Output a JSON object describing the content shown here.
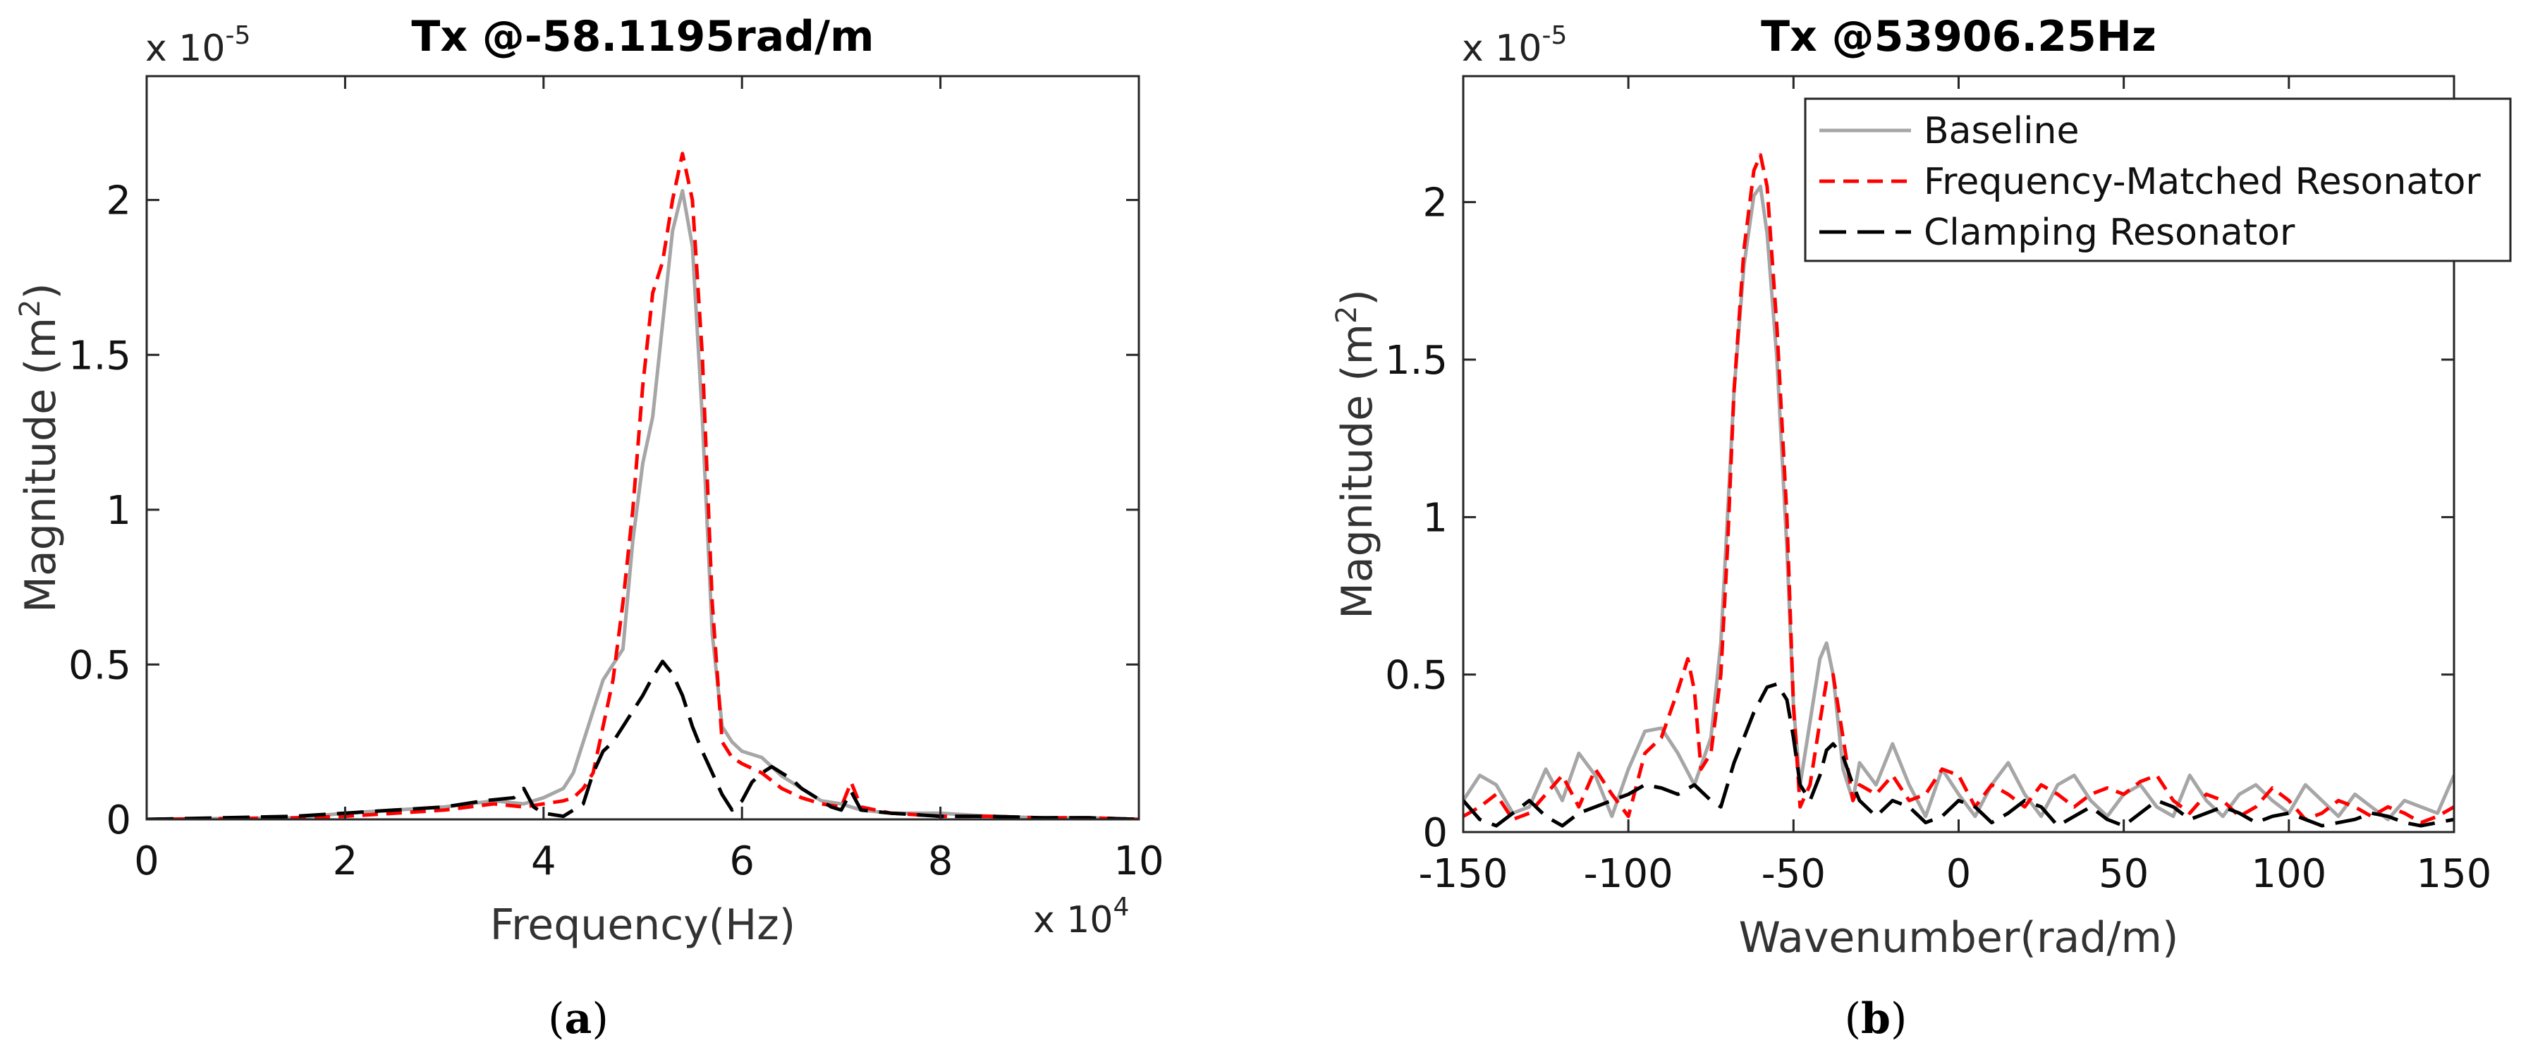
{
  "chart_data": [
    {
      "id": "a",
      "type": "line",
      "title": "Tx @-58.1195rad/m",
      "xlabel": "Frequency(Hz)",
      "ylabel": "Magnitude (m",
      "ylabel_sup": "2",
      "ylabel_close": ")",
      "xlim": [
        0,
        100000
      ],
      "ylim": [
        0,
        2.4
      ],
      "x_ticks": [
        0,
        20000,
        40000,
        60000,
        80000,
        100000
      ],
      "x_tick_labels": [
        "0",
        "2",
        "4",
        "6",
        "8",
        "10"
      ],
      "y_ticks": [
        0,
        0.5,
        1,
        1.5,
        2
      ],
      "y_tick_labels": [
        "0",
        "0.5",
        "1",
        "1.5",
        "2"
      ],
      "x_exponent": {
        "base": "x 10",
        "power": "4"
      },
      "y_exponent": {
        "base": "x 10",
        "power": "-5"
      },
      "caption_open": "(",
      "caption_letter": "a",
      "caption_close": ")",
      "series": [
        {
          "name": "Baseline",
          "color": "#a6a6a6",
          "dash": "solid",
          "x": [
            0,
            15000,
            20000,
            25000,
            30000,
            35000,
            38000,
            40000,
            42000,
            43000,
            44000,
            45000,
            46000,
            47000,
            48000,
            49000,
            50000,
            51000,
            52000,
            53000,
            54000,
            55000,
            56000,
            57000,
            58000,
            59000,
            60000,
            62000,
            64000,
            66000,
            68000,
            70000,
            72000,
            75000,
            80000,
            85000,
            90000,
            95000,
            100000
          ],
          "y": [
            0,
            0.005,
            0.02,
            0.03,
            0.04,
            0.06,
            0.05,
            0.07,
            0.1,
            0.15,
            0.25,
            0.35,
            0.45,
            0.5,
            0.55,
            0.9,
            1.15,
            1.3,
            1.6,
            1.9,
            2.03,
            1.85,
            1.3,
            0.6,
            0.3,
            0.25,
            0.22,
            0.2,
            0.14,
            0.1,
            0.06,
            0.05,
            0.03,
            0.02,
            0.02,
            0.01,
            0.005,
            0.005,
            0
          ]
        },
        {
          "name": "Frequency-Matched Resonator",
          "color": "#ff0000",
          "dash": "dashed",
          "x": [
            0,
            15000,
            20000,
            25000,
            30000,
            35000,
            38000,
            40000,
            42000,
            43000,
            44000,
            45000,
            46000,
            47000,
            48000,
            49000,
            50000,
            51000,
            52000,
            53000,
            54000,
            55000,
            56000,
            57000,
            58000,
            59000,
            60000,
            62000,
            64000,
            66000,
            68000,
            70000,
            71000,
            72000,
            75000,
            80000,
            85000,
            90000,
            95000,
            100000
          ],
          "y": [
            0,
            0.005,
            0.01,
            0.02,
            0.03,
            0.05,
            0.04,
            0.05,
            0.06,
            0.07,
            0.1,
            0.15,
            0.3,
            0.45,
            0.7,
            1.0,
            1.4,
            1.7,
            1.8,
            2.0,
            2.15,
            2.0,
            1.5,
            0.7,
            0.25,
            0.2,
            0.18,
            0.15,
            0.1,
            0.07,
            0.05,
            0.04,
            0.12,
            0.04,
            0.02,
            0.01,
            0.01,
            0.005,
            0.005,
            0
          ]
        },
        {
          "name": "Clamping Resonator",
          "color": "#000000",
          "dash": "longdash",
          "x": [
            0,
            15000,
            20000,
            25000,
            30000,
            34000,
            37000,
            38000,
            39000,
            40000,
            42000,
            44000,
            45000,
            46000,
            47000,
            48000,
            49000,
            50000,
            51000,
            52000,
            53000,
            54000,
            55000,
            56000,
            57000,
            58000,
            59000,
            60000,
            61000,
            62000,
            63000,
            64000,
            65000,
            66000,
            67000,
            68000,
            69000,
            70000,
            71000,
            72000,
            75000,
            80000,
            85000,
            90000,
            95000,
            100000
          ],
          "y": [
            0,
            0.01,
            0.02,
            0.03,
            0.04,
            0.06,
            0.07,
            0.1,
            0.04,
            0.02,
            0.01,
            0.05,
            0.15,
            0.22,
            0.25,
            0.3,
            0.35,
            0.4,
            0.46,
            0.51,
            0.47,
            0.4,
            0.3,
            0.22,
            0.15,
            0.08,
            0.03,
            0.06,
            0.12,
            0.15,
            0.17,
            0.15,
            0.13,
            0.1,
            0.08,
            0.06,
            0.04,
            0.03,
            0.09,
            0.03,
            0.02,
            0.01,
            0.01,
            0.005,
            0.005,
            0
          ]
        }
      ]
    },
    {
      "id": "b",
      "type": "line",
      "title": "Tx @53906.25Hz",
      "xlabel": "Wavenumber(rad/m)",
      "ylabel": "Magnitude (m",
      "ylabel_sup": "2",
      "ylabel_close": ")",
      "xlim": [
        -150,
        150
      ],
      "ylim": [
        0,
        2.4
      ],
      "x_ticks": [
        -150,
        -100,
        -50,
        0,
        50,
        100,
        150
      ],
      "x_tick_labels": [
        "-150",
        "-100",
        "-50",
        "0",
        "50",
        "100",
        "150"
      ],
      "y_ticks": [
        0,
        0.5,
        1,
        1.5,
        2
      ],
      "y_tick_labels": [
        "0",
        "0.5",
        "1",
        "1.5",
        "2"
      ],
      "y_exponent": {
        "base": "x 10",
        "power": "-5"
      },
      "legend_position": "top-right",
      "caption_open": "(",
      "caption_letter": "b",
      "caption_close": ")",
      "series": [
        {
          "name": "Baseline",
          "color": "#a6a6a6",
          "dash": "solid",
          "x": [
            -150,
            -145,
            -140,
            -135,
            -130,
            -125,
            -120,
            -115,
            -110,
            -105,
            -100,
            -95,
            -90,
            -85,
            -80,
            -75,
            -72,
            -70,
            -68,
            -65,
            -62,
            -60,
            -58,
            -55,
            -52,
            -50,
            -48,
            -45,
            -42,
            -40,
            -38,
            -35,
            -32,
            -30,
            -25,
            -20,
            -15,
            -10,
            -5,
            0,
            5,
            10,
            15,
            20,
            25,
            30,
            35,
            40,
            45,
            50,
            55,
            60,
            65,
            70,
            75,
            80,
            85,
            90,
            95,
            100,
            105,
            110,
            115,
            120,
            125,
            130,
            135,
            140,
            145,
            150
          ],
          "y": [
            0.1,
            0.18,
            0.15,
            0.06,
            0.08,
            0.2,
            0.1,
            0.25,
            0.18,
            0.05,
            0.2,
            0.32,
            0.33,
            0.25,
            0.15,
            0.3,
            0.6,
            1.0,
            1.4,
            1.8,
            2.02,
            2.05,
            1.9,
            1.5,
            0.9,
            0.4,
            0.15,
            0.35,
            0.55,
            0.6,
            0.5,
            0.2,
            0.1,
            0.22,
            0.15,
            0.28,
            0.15,
            0.05,
            0.2,
            0.12,
            0.05,
            0.15,
            0.22,
            0.12,
            0.05,
            0.15,
            0.18,
            0.1,
            0.05,
            0.12,
            0.15,
            0.08,
            0.05,
            0.18,
            0.1,
            0.05,
            0.12,
            0.15,
            0.1,
            0.06,
            0.15,
            0.1,
            0.05,
            0.12,
            0.08,
            0.04,
            0.1,
            0.08,
            0.06,
            0.18
          ]
        },
        {
          "name": "Frequency-Matched Resonator",
          "color": "#ff0000",
          "dash": "dashed",
          "x": [
            -150,
            -145,
            -140,
            -135,
            -130,
            -125,
            -120,
            -115,
            -110,
            -105,
            -100,
            -95,
            -90,
            -85,
            -82,
            -80,
            -78,
            -75,
            -72,
            -70,
            -68,
            -65,
            -62,
            -60,
            -58,
            -55,
            -52,
            -50,
            -48,
            -45,
            -42,
            -40,
            -38,
            -35,
            -32,
            -30,
            -25,
            -20,
            -15,
            -10,
            -5,
            0,
            5,
            10,
            15,
            20,
            25,
            30,
            35,
            40,
            45,
            50,
            55,
            60,
            65,
            70,
            75,
            80,
            85,
            90,
            95,
            100,
            105,
            110,
            115,
            120,
            125,
            130,
            135,
            140,
            145,
            150
          ],
          "y": [
            0.05,
            0.08,
            0.12,
            0.04,
            0.06,
            0.12,
            0.18,
            0.08,
            0.2,
            0.12,
            0.05,
            0.25,
            0.3,
            0.45,
            0.55,
            0.45,
            0.2,
            0.25,
            0.5,
            0.9,
            1.4,
            1.85,
            2.1,
            2.15,
            2.05,
            1.6,
            1.0,
            0.4,
            0.08,
            0.15,
            0.35,
            0.48,
            0.5,
            0.3,
            0.1,
            0.15,
            0.12,
            0.18,
            0.1,
            0.12,
            0.2,
            0.18,
            0.08,
            0.15,
            0.12,
            0.08,
            0.15,
            0.12,
            0.08,
            0.12,
            0.14,
            0.12,
            0.16,
            0.18,
            0.1,
            0.06,
            0.12,
            0.1,
            0.05,
            0.08,
            0.14,
            0.1,
            0.04,
            0.06,
            0.1,
            0.08,
            0.05,
            0.08,
            0.06,
            0.03,
            0.05,
            0.08
          ]
        },
        {
          "name": "Clamping Resonator",
          "color": "#000000",
          "dash": "longdash",
          "x": [
            -150,
            -145,
            -140,
            -135,
            -130,
            -125,
            -120,
            -115,
            -110,
            -105,
            -100,
            -95,
            -90,
            -85,
            -80,
            -75,
            -72,
            -70,
            -68,
            -65,
            -62,
            -60,
            -58,
            -55,
            -52,
            -50,
            -48,
            -45,
            -42,
            -40,
            -38,
            -35,
            -32,
            -30,
            -25,
            -20,
            -15,
            -10,
            -5,
            0,
            5,
            10,
            15,
            20,
            25,
            30,
            35,
            40,
            45,
            50,
            55,
            60,
            65,
            70,
            75,
            80,
            85,
            90,
            95,
            100,
            105,
            110,
            115,
            120,
            125,
            130,
            135,
            140,
            145,
            150
          ],
          "y": [
            0.1,
            0.04,
            0.02,
            0.06,
            0.1,
            0.05,
            0.02,
            0.06,
            0.08,
            0.1,
            0.12,
            0.15,
            0.14,
            0.12,
            0.15,
            0.1,
            0.08,
            0.15,
            0.22,
            0.3,
            0.38,
            0.42,
            0.46,
            0.47,
            0.42,
            0.3,
            0.15,
            0.1,
            0.18,
            0.26,
            0.28,
            0.24,
            0.15,
            0.1,
            0.05,
            0.1,
            0.08,
            0.03,
            0.05,
            0.1,
            0.08,
            0.03,
            0.06,
            0.1,
            0.08,
            0.02,
            0.05,
            0.08,
            0.04,
            0.02,
            0.06,
            0.1,
            0.08,
            0.04,
            0.06,
            0.08,
            0.06,
            0.03,
            0.05,
            0.06,
            0.04,
            0.02,
            0.03,
            0.04,
            0.06,
            0.05,
            0.03,
            0.02,
            0.03,
            0.04
          ]
        }
      ]
    }
  ]
}
